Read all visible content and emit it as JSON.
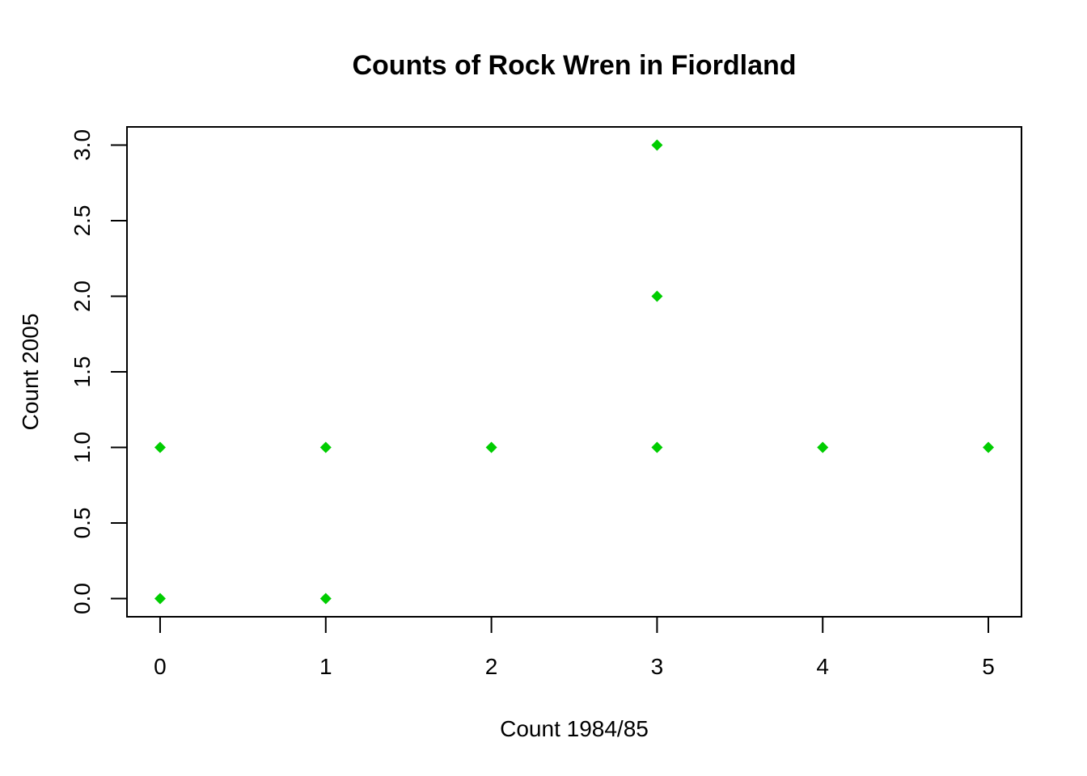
{
  "chart_data": {
    "type": "scatter",
    "title": "Counts of Rock Wren in Fiordland",
    "xlabel": "Count 1984/85",
    "ylabel": "Count 2005",
    "xlim": [
      -0.2,
      5.2
    ],
    "ylim": [
      -0.12,
      3.12
    ],
    "x_ticks": [
      0,
      1,
      2,
      3,
      4,
      5
    ],
    "x_tick_labels": [
      "0",
      "1",
      "2",
      "3",
      "4",
      "5"
    ],
    "y_ticks": [
      0,
      0.5,
      1,
      1.5,
      2,
      2.5,
      3
    ],
    "y_tick_labels": [
      "0.0",
      "0.5",
      "1.0",
      "1.5",
      "2.0",
      "2.5",
      "3.0"
    ],
    "grid": false,
    "legend": "none",
    "marker": "diamond",
    "point_color": "#00cd00",
    "series": [
      {
        "points": [
          {
            "x": 0,
            "y": 1
          },
          {
            "x": 0,
            "y": 0
          },
          {
            "x": 1,
            "y": 1
          },
          {
            "x": 1,
            "y": 0
          },
          {
            "x": 2,
            "y": 1
          },
          {
            "x": 3,
            "y": 3
          },
          {
            "x": 3,
            "y": 2
          },
          {
            "x": 3,
            "y": 1
          },
          {
            "x": 4,
            "y": 1
          },
          {
            "x": 5,
            "y": 1
          }
        ]
      }
    ]
  }
}
